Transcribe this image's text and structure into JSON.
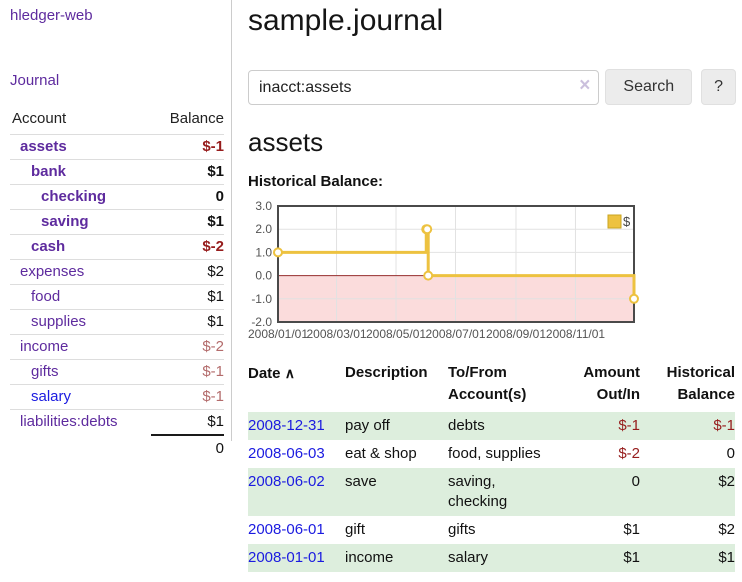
{
  "app": {
    "title": "hledger-web"
  },
  "sidebar": {
    "journal_link": "Journal",
    "accounts": {
      "headers": [
        "Account",
        "Balance"
      ],
      "rows": [
        {
          "name": "assets",
          "balance": "$-1",
          "depth": 1,
          "bold": true,
          "name_color": "purple",
          "balance_style": "neg-strong"
        },
        {
          "name": "bank",
          "balance": "$1",
          "depth": 2,
          "bold": true,
          "name_color": "purple",
          "balance_style": "plain"
        },
        {
          "name": "checking",
          "balance": "0",
          "depth": 3,
          "bold": true,
          "name_color": "purple",
          "balance_style": "plain"
        },
        {
          "name": "saving",
          "balance": "$1",
          "depth": 3,
          "bold": true,
          "name_color": "purple",
          "balance_style": "plain"
        },
        {
          "name": "cash",
          "balance": "$-2",
          "depth": 2,
          "bold": true,
          "name_color": "purple",
          "balance_style": "neg-strong"
        },
        {
          "name": "expenses",
          "balance": "$2",
          "depth": 1,
          "bold": false,
          "name_color": "purple",
          "balance_style": "plain"
        },
        {
          "name": "food",
          "balance": "$1",
          "depth": 2,
          "bold": false,
          "name_color": "purple",
          "balance_style": "plain"
        },
        {
          "name": "supplies",
          "balance": "$1",
          "depth": 2,
          "bold": false,
          "name_color": "purple",
          "balance_style": "plain"
        },
        {
          "name": "income",
          "balance": "$-2",
          "depth": 1,
          "bold": false,
          "name_color": "purple",
          "balance_style": "neg-muted"
        },
        {
          "name": "gifts",
          "balance": "$-1",
          "depth": 2,
          "bold": false,
          "name_color": "purple",
          "balance_style": "neg-muted"
        },
        {
          "name": "salary",
          "balance": "$-1",
          "depth": 2,
          "bold": false,
          "name_color": "blue",
          "balance_style": "neg-muted"
        },
        {
          "name": "liabilities:debts",
          "balance": "$1",
          "depth": 1,
          "bold": false,
          "name_color": "purple",
          "balance_style": "plain"
        }
      ],
      "total": "0"
    }
  },
  "main": {
    "title": "sample.journal",
    "search": {
      "value": "inacct:assets",
      "clear_icon": "×",
      "button_label": "Search",
      "help_label": "?"
    },
    "account_heading": "assets",
    "chart_label": "Historical Balance:",
    "register": {
      "headers": {
        "date": "Date",
        "sort_indicator": "∧",
        "description": "Description",
        "accounts": "To/From Account(s)",
        "amount": "Amount Out/In",
        "balance": "Historical Balance"
      },
      "rows": [
        {
          "date": "2008-12-31",
          "description": "pay off",
          "accounts": "debts",
          "amount": "$-1",
          "amount_negative": true,
          "balance": "$-1",
          "balance_negative": true
        },
        {
          "date": "2008-06-03",
          "description": "eat & shop",
          "accounts": "food, supplies",
          "amount": "$-2",
          "amount_negative": true,
          "balance": "0",
          "balance_negative": false
        },
        {
          "date": "2008-06-02",
          "description": "save",
          "accounts": "saving, checking",
          "amount": "0",
          "amount_negative": false,
          "balance": "$2",
          "balance_negative": false
        },
        {
          "date": "2008-06-01",
          "description": "gift",
          "accounts": "gifts",
          "amount": "$1",
          "amount_negative": false,
          "balance": "$2",
          "balance_negative": false
        },
        {
          "date": "2008-01-01",
          "description": "income",
          "accounts": "salary",
          "amount": "$1",
          "amount_negative": false,
          "balance": "$1",
          "balance_negative": false
        }
      ]
    }
  },
  "chart_data": {
    "type": "line",
    "step": true,
    "title": "Historical Balance:",
    "series": [
      {
        "name": "$",
        "color": "#edc240",
        "points": [
          [
            "2008-01-01",
            1
          ],
          [
            "2008-06-01",
            2
          ],
          [
            "2008-06-02",
            2
          ],
          [
            "2008-06-03",
            0
          ],
          [
            "2008-12-31",
            -1
          ]
        ]
      }
    ],
    "points_days": [
      [
        0,
        1
      ],
      [
        152,
        2
      ],
      [
        153,
        2
      ],
      [
        154,
        0
      ],
      [
        365,
        -1
      ]
    ],
    "x_range_days": 365,
    "x_ticks": [
      {
        "day": 0,
        "label": "2008/01/01"
      },
      {
        "day": 60,
        "label": "2008/03/01"
      },
      {
        "day": 121,
        "label": "2008/05/01"
      },
      {
        "day": 182,
        "label": "2008/07/01"
      },
      {
        "day": 244,
        "label": "2008/09/01"
      },
      {
        "day": 305,
        "label": "2008/11/01"
      }
    ],
    "y_ticks": [
      {
        "v": 3,
        "label": "3.0"
      },
      {
        "v": 2,
        "label": "2.0"
      },
      {
        "v": 1,
        "label": "1.0"
      },
      {
        "v": 0,
        "label": "0.0"
      },
      {
        "v": -1,
        "label": "-1.0"
      },
      {
        "v": -2,
        "label": "-2.0"
      }
    ],
    "ylim": [
      -2,
      3
    ],
    "grid": true,
    "legend": {
      "label": "$",
      "position": "top-right"
    },
    "colors": {
      "series": "#edc240",
      "marker_fill": "#ffffff",
      "negative_region": "#fbdcdc",
      "zero_line": "#992e2e",
      "grid": "#e2e2e2",
      "frame": "#4a4a4a",
      "tick_text": "#545454",
      "legend_border": "#c9a421"
    }
  },
  "colors": {
    "purple": "#5e2b9e",
    "blue": "#1b1be0",
    "neg_strong": "#961c1c",
    "neg_muted": "#b36b6b",
    "row_stripe": "#ddeedd"
  }
}
